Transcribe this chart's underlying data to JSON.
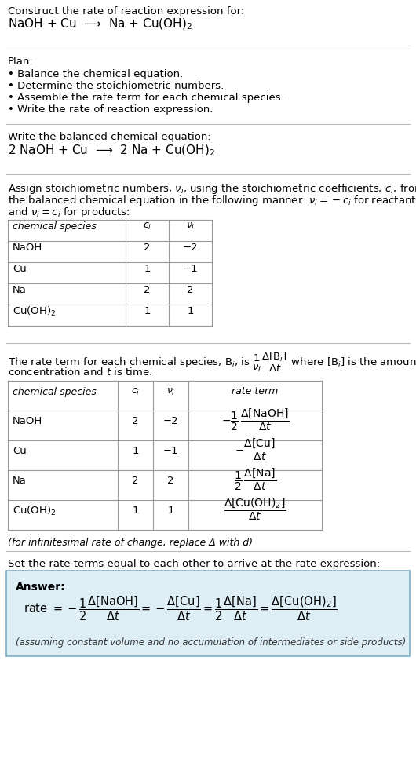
{
  "bg_color": "#ffffff",
  "text_color": "#000000",
  "answer_bg": "#ddeef5",
  "answer_border": "#7ab0c8",
  "section1_title": "Construct the rate of reaction expression for:",
  "section1_eq": "NaOH + Cu  ⟶  Na + Cu(OH)$_2$",
  "plan_title": "Plan:",
  "plan_items": [
    "• Balance the chemical equation.",
    "• Determine the stoichiometric numbers.",
    "• Assemble the rate term for each chemical species.",
    "• Write the rate of reaction expression."
  ],
  "balanced_title": "Write the balanced chemical equation:",
  "balanced_eq": "2 NaOH + Cu  ⟶  2 Na + Cu(OH)$_2$",
  "stoich_intro_1": "Assign stoichiometric numbers, $\\nu_i$, using the stoichiometric coefficients, $c_i$, from",
  "stoich_intro_2": "the balanced chemical equation in the following manner: $\\nu_i = -c_i$ for reactants",
  "stoich_intro_3": "and $\\nu_i = c_i$ for products:",
  "table1_headers": [
    "chemical species",
    "$c_i$",
    "$\\nu_i$"
  ],
  "table1_rows": [
    [
      "NaOH",
      "2",
      "−2"
    ],
    [
      "Cu",
      "1",
      "−1"
    ],
    [
      "Na",
      "2",
      "2"
    ],
    [
      "Cu(OH)$_2$",
      "1",
      "1"
    ]
  ],
  "rate_intro_1": "The rate term for each chemical species, B$_i$, is $\\dfrac{1}{\\nu_i}\\dfrac{\\Delta[\\mathrm{B}_i]}{\\Delta t}$ where [B$_i$] is the amount",
  "rate_intro_2": "concentration and $t$ is time:",
  "table2_headers": [
    "chemical species",
    "$c_i$",
    "$\\nu_i$",
    "rate term"
  ],
  "table2_rows": [
    [
      "NaOH",
      "2",
      "−2",
      "$-\\dfrac{1}{2}\\,\\dfrac{\\Delta[\\mathrm{NaOH}]}{\\Delta t}$"
    ],
    [
      "Cu",
      "1",
      "−1",
      "$-\\dfrac{\\Delta[\\mathrm{Cu}]}{\\Delta t}$"
    ],
    [
      "Na",
      "2",
      "2",
      "$\\dfrac{1}{2}\\,\\dfrac{\\Delta[\\mathrm{Na}]}{\\Delta t}$"
    ],
    [
      "Cu(OH)$_2$",
      "1",
      "1",
      "$\\dfrac{\\Delta[\\mathrm{Cu(OH)_2}]}{\\Delta t}$"
    ]
  ],
  "infinitesimal_note": "(for infinitesimal rate of change, replace Δ with d)",
  "set_equal_intro": "Set the rate terms equal to each other to arrive at the rate expression:",
  "answer_label": "Answer:",
  "answer_eq": "rate $= -\\dfrac{1}{2}\\dfrac{\\Delta[\\mathrm{NaOH}]}{\\Delta t} = -\\dfrac{\\Delta[\\mathrm{Cu}]}{\\Delta t} = \\dfrac{1}{2}\\dfrac{\\Delta[\\mathrm{Na}]}{\\Delta t} = \\dfrac{\\Delta[\\mathrm{Cu(OH)_2}]}{\\Delta t}$",
  "answer_note": "(assuming constant volume and no accumulation of intermediates or side products)"
}
